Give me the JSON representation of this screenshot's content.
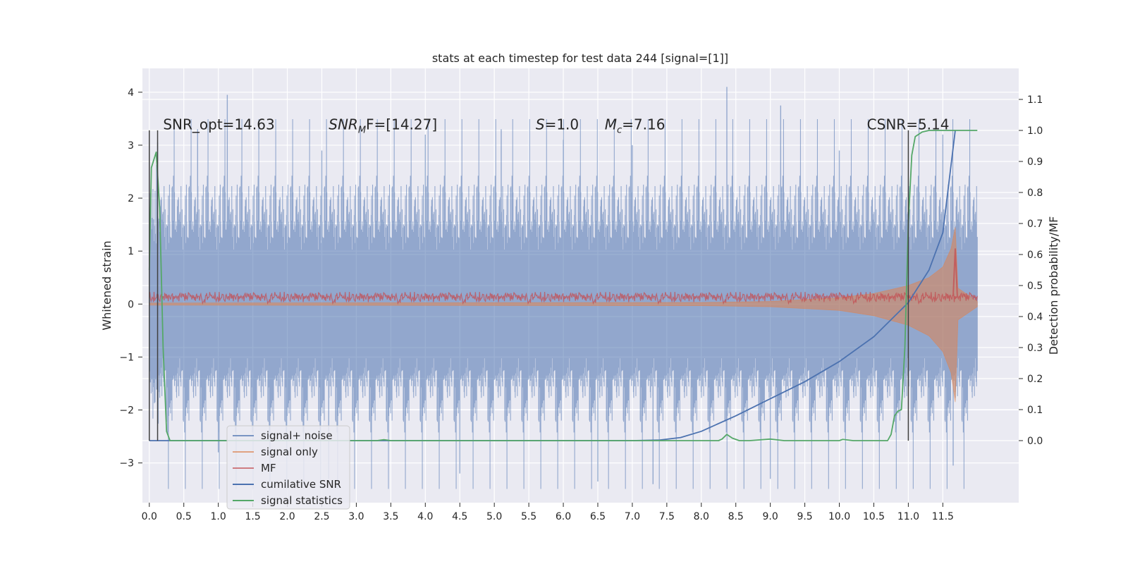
{
  "chart_data": {
    "type": "line",
    "title": "stats at each timestep for test data 244 [signal=[1]]",
    "xlabel": "",
    "ylabel": "Whitened strain",
    "ylabel_right": "Detection probability/MF",
    "xlim": [
      -0.1,
      12.6
    ],
    "ylim": [
      -3.75,
      4.45
    ],
    "ylim_right": [
      -0.2,
      1.2
    ],
    "x_ticks": [
      "0.0",
      "0.5",
      "1.0",
      "1.5",
      "2.0",
      "2.5",
      "3.0",
      "3.5",
      "4.0",
      "4.5",
      "5.0",
      "5.5",
      "6.0",
      "6.5",
      "7.0",
      "7.5",
      "8.0",
      "8.5",
      "9.0",
      "9.5",
      "10.0",
      "10.5",
      "11.0",
      "11.5"
    ],
    "y_ticks": [
      "4",
      "3",
      "2",
      "1",
      "0",
      "−1",
      "−2",
      "−3"
    ],
    "y_ticks_right": [
      "1.1",
      "1.0",
      "0.9",
      "0.8",
      "0.7",
      "0.6",
      "0.5",
      "0.4",
      "0.3",
      "0.2",
      "0.1",
      "0.0"
    ],
    "grid": true,
    "legend_placement": "lower-left",
    "annotations": [
      {
        "text": "SNR_opt=14.63",
        "x": 0.2,
        "y": 3.3
      },
      {
        "text": "SNR",
        "sub": "M",
        "tail": "F=[14.27]",
        "x": 2.6,
        "y": 3.3,
        "italic_head": true
      },
      {
        "text": "S",
        "tail": "=1.0",
        "x": 5.6,
        "y": 3.3,
        "italic_head": true
      },
      {
        "text": "M",
        "sub": "c",
        "tail": "=7.16",
        "x": 6.6,
        "y": 3.3,
        "italic_head": true
      },
      {
        "text": "CSNR=5.14",
        "x": 10.4,
        "y": 3.3
      }
    ],
    "vlines": [
      {
        "x": 0.0,
        "ymin": -2.58,
        "ymax": 3.28
      },
      {
        "x": 0.12,
        "ymin": -2.58,
        "ymax": 3.28
      },
      {
        "x": 11.0,
        "ymin": -2.58,
        "ymax": 3.28
      }
    ],
    "series": [
      {
        "name": "signal+ noise",
        "color": "#4c72b0",
        "style": "dense noise, approx. envelope",
        "x": [
          0,
          12
        ],
        "envelope_high": 1.5,
        "envelope_low": -1.5,
        "peaks": [
          {
            "x": 0.12,
            "y": 3.05
          },
          {
            "x": 0.7,
            "y": 3.3
          },
          {
            "x": 1.13,
            "y": 3.95
          },
          {
            "x": 2.5,
            "y": 2.9
          },
          {
            "x": 4.0,
            "y": 3.2
          },
          {
            "x": 5.1,
            "y": 3.3
          },
          {
            "x": 6.0,
            "y": 3.1
          },
          {
            "x": 7.0,
            "y": 3.0
          },
          {
            "x": 8.37,
            "y": 4.1
          },
          {
            "x": 9.15,
            "y": 3.75
          },
          {
            "x": 10.0,
            "y": 2.9
          },
          {
            "x": 11.5,
            "y": 3.2
          }
        ],
        "troughs": [
          {
            "x": 1.0,
            "y": -2.8
          },
          {
            "x": 2.6,
            "y": -3.3
          },
          {
            "x": 4.5,
            "y": -3.2
          },
          {
            "x": 6.5,
            "y": -3.35
          },
          {
            "x": 7.3,
            "y": -3.4
          },
          {
            "x": 9.0,
            "y": -3.3
          },
          {
            "x": 11.65,
            "y": -3.05
          }
        ]
      },
      {
        "name": "signal only",
        "color": "#dd8452",
        "style": "chirp envelope",
        "x": [
          0,
          8,
          9,
          10,
          10.5,
          11.0,
          11.3,
          11.5,
          11.62,
          11.68,
          11.72,
          12.0
        ],
        "high": [
          0.02,
          0.03,
          0.05,
          0.12,
          0.2,
          0.35,
          0.5,
          0.7,
          1.05,
          1.45,
          0.3,
          0.05
        ],
        "low": [
          -0.02,
          -0.03,
          -0.05,
          -0.12,
          -0.22,
          -0.4,
          -0.6,
          -0.9,
          -1.3,
          -1.85,
          -0.3,
          -0.05
        ]
      },
      {
        "name": "MF",
        "color": "#c44e52",
        "style": "noisy band",
        "band_center": 0.12,
        "band_halfwidth": 0.1,
        "spike": {
          "x": 11.68,
          "y": 1.05
        }
      },
      {
        "name": "cumilative SNR",
        "color": "#4c72b0",
        "axis": "right",
        "x": [
          0.0,
          0.12,
          7.0,
          7.4,
          7.7,
          8.0,
          8.5,
          9.0,
          9.5,
          10.0,
          10.5,
          11.0,
          11.3,
          11.5,
          11.68
        ],
        "y": [
          0.0,
          0.0,
          0.0,
          0.002,
          0.01,
          0.03,
          0.08,
          0.135,
          0.19,
          0.255,
          0.335,
          0.445,
          0.55,
          0.67,
          1.0
        ]
      },
      {
        "name": "signal statistics",
        "color": "#55a868",
        "axis": "right",
        "x": [
          0.0,
          0.03,
          0.1,
          0.15,
          0.2,
          0.25,
          0.3,
          3.3,
          3.4,
          3.5,
          8.25,
          8.3,
          8.37,
          8.45,
          8.55,
          8.7,
          9.0,
          9.2,
          10.0,
          10.05,
          10.2,
          10.7,
          10.75,
          10.8,
          10.85,
          10.9,
          10.95,
          11.0,
          11.05,
          11.1,
          11.2,
          11.3,
          11.5,
          12.0
        ],
        "y": [
          0.55,
          0.88,
          0.93,
          0.75,
          0.3,
          0.03,
          0.0,
          0.0,
          0.003,
          0.0,
          0.0,
          0.005,
          0.02,
          0.008,
          0.0,
          0.0,
          0.005,
          0.0,
          0.0,
          0.004,
          0.0,
          0.0,
          0.02,
          0.08,
          0.095,
          0.1,
          0.3,
          0.7,
          0.92,
          0.98,
          0.995,
          1.0,
          1.0,
          1.0
        ]
      }
    ]
  }
}
